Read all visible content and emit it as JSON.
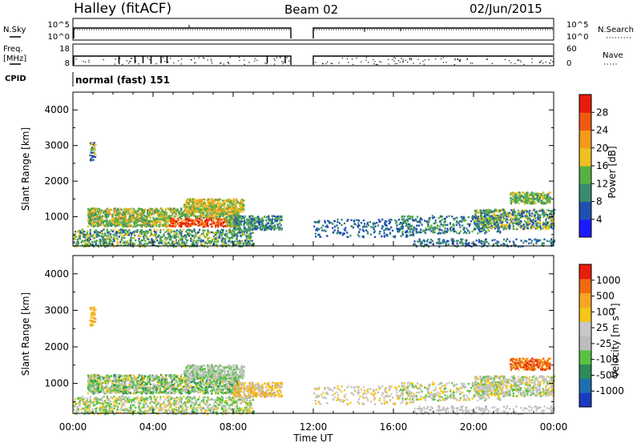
{
  "header": {
    "station": "Halley (fitACF)",
    "beam": "Beam 02",
    "date": "02/Jun/2015"
  },
  "left_labels": {
    "nsky": "N.Sky",
    "freq": "Freq.",
    "freq_unit": "[MHz]",
    "cpid": "CPID"
  },
  "right_labels": {
    "nsearch": "N.Search",
    "nave": "Nave"
  },
  "cpid_text": "normal (fast) 151",
  "colors": {
    "axis": "#000000",
    "power_scale": [
      "#1a1aff",
      "#1f4fb0",
      "#3a8a6e",
      "#58b043",
      "#f0c020",
      "#f39a1b",
      "#ef5a10",
      "#e81c0c"
    ],
    "velocity_scale": [
      "#e81c0c",
      "#ef6a10",
      "#f5a623",
      "#f5c518",
      "#c8c8c8",
      "#bdbdbd",
      "#58c243",
      "#2e8b57",
      "#1f6fb0",
      "#1a3ac0"
    ]
  },
  "chart_data": [
    {
      "type": "line",
      "name": "noise-panel",
      "left_axis": {
        "label": "N.Sky",
        "ticks": [
          "10^5",
          "10^0"
        ]
      },
      "right_axis": {
        "label": "N.Search",
        "ticks": [
          "10^5",
          "10^0"
        ]
      },
      "data_gap": [
        "10:50",
        "12:00"
      ]
    },
    {
      "type": "line",
      "name": "frequency-panel",
      "left_axis": {
        "label": "Freq. [MHz]",
        "ticks": [
          "18",
          "8"
        ]
      },
      "right_axis": {
        "label": "Nave",
        "ticks": [
          "60",
          "0"
        ]
      },
      "data_gap": [
        "10:50",
        "12:00"
      ]
    },
    {
      "type": "heatmap",
      "name": "power-panel",
      "ylabel": "Slant Range [km]",
      "ylim": [
        180,
        4500
      ],
      "yticks": [
        "4000",
        "3000",
        "2000",
        "1000"
      ],
      "colorbar": {
        "label": "Power [dB]",
        "ticks": [
          "28",
          "24",
          "20",
          "16",
          "12",
          "8",
          "4"
        ],
        "range": [
          0,
          32
        ]
      }
    },
    {
      "type": "heatmap",
      "name": "velocity-panel",
      "ylabel": "Slant Range [km]",
      "ylim": [
        180,
        4500
      ],
      "yticks": [
        "4000",
        "3000",
        "2000",
        "1000"
      ],
      "colorbar": {
        "label": "Velocity [m s⁻¹]",
        "ticks": [
          "1000",
          "500",
          "100",
          "25",
          "-25",
          "-100",
          "-500",
          "-1000"
        ]
      }
    }
  ],
  "time_axis": {
    "label": "Time UT",
    "ticks": [
      "00:00",
      "04:00",
      "08:00",
      "12:00",
      "16:00",
      "20:00",
      "00:00"
    ]
  }
}
